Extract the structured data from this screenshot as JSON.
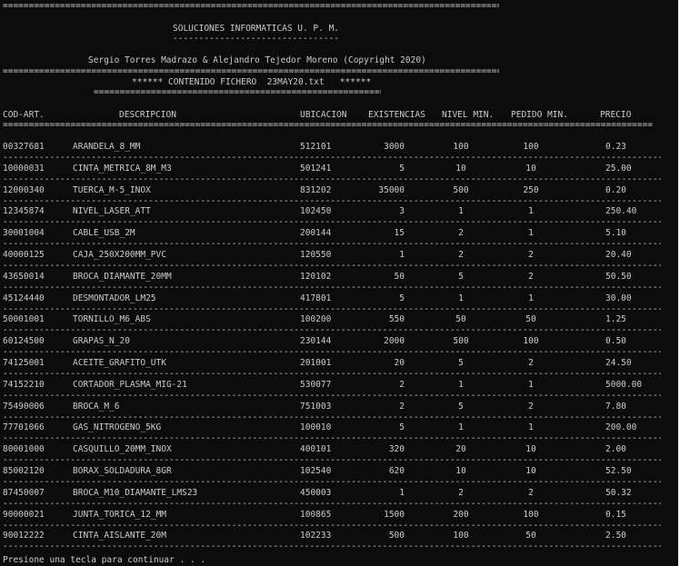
{
  "header": {
    "top_rule": "====================================================================================================================",
    "company": "SOLUCIONES INFORMATICAS U. P. M.",
    "company_underline": "--------------------------------",
    "authors": "Sergio Torres Madrazo & Alejandro Tejedor Moreno (Copyright 2020)",
    "authors_rule": "=====================================================================================================================",
    "file_title": "****** CONTENIDO FICHERO  23MAY20.txt   ******",
    "file_title_rule": "==============================================================================",
    "columns_rule": "===================================================================================================================================================="
  },
  "table": {
    "columns": [
      "COD-ART.",
      "DESCRIPCION",
      "UBICACION",
      "EXISTENCIAS",
      "NIVEL MIN.",
      "PEDIDO MIN.",
      "PRECIO"
    ],
    "row_separator": "--------------------------------------------------------------------------------------------------------------------------------------------------------------------",
    "rows": [
      [
        "00327681",
        "ARANDELA_8_MM",
        "512101",
        "3000",
        "100",
        "100",
        "0.23"
      ],
      [
        "10000031",
        "CINTA_METRICA_8M_M3",
        "501241",
        "5",
        "10",
        "10",
        "25.00"
      ],
      [
        "12000340",
        "TUERCA_M-5_INOX",
        "831202",
        "35000",
        "500",
        "250",
        "0.20"
      ],
      [
        "12345874",
        "NIVEL_LASER_ATT",
        "102450",
        "3",
        "1",
        "1",
        "250.40"
      ],
      [
        "30001004",
        "CABLE_USB_2M",
        "200144",
        "15",
        "2",
        "1",
        "5.10"
      ],
      [
        "40000125",
        "CAJA_250X200MM_PVC",
        "120550",
        "1",
        "2",
        "2",
        "20.40"
      ],
      [
        "43650014",
        "BROCA_DIAMANTE_20MM",
        "120102",
        "50",
        "5",
        "2",
        "50.50"
      ],
      [
        "45124440",
        "DESMONTADOR_LM25",
        "417801",
        "5",
        "1",
        "1",
        "30.00"
      ],
      [
        "50001001",
        "TORNILLO_M6_ABS",
        "100200",
        "550",
        "50",
        "50",
        "1.25"
      ],
      [
        "60124500",
        "GRAPAS_N_20",
        "230144",
        "2000",
        "500",
        "100",
        "0.50"
      ],
      [
        "74125001",
        "ACEITE_GRAFITO_UTK",
        "201001",
        "20",
        "5",
        "2",
        "24.50"
      ],
      [
        "74152210",
        "CORTADOR_PLASMA_MIG-21",
        "530077",
        "2",
        "1",
        "1",
        "5000.00"
      ],
      [
        "75490006",
        "BROCA_M_6",
        "751003",
        "2",
        "5",
        "2",
        "7.80"
      ],
      [
        "77701066",
        "GAS_NITROGENO_5KG",
        "100010",
        "5",
        "1",
        "1",
        "200.00"
      ],
      [
        "80001000",
        "CASQUILLO_20MM_INOX",
        "400101",
        "320",
        "20",
        "10",
        "2.00"
      ],
      [
        "85002120",
        "BORAX_SOLDADURA_8GR",
        "102540",
        "620",
        "10",
        "10",
        "52.50"
      ],
      [
        "87450007",
        "BROCA_M10_DIAMANTE_LMS23",
        "450003",
        "1",
        "2",
        "2",
        "50.32"
      ],
      [
        "90000021",
        "JUNTA_TORICA_12_MM",
        "100865",
        "1500",
        "200",
        "100",
        "0.15"
      ],
      [
        "90012222",
        "CINTA_AISLANTE_20M",
        "102233",
        "500",
        "100",
        "50",
        "2.50"
      ]
    ]
  },
  "prompt": "Presione una tecla para continuar . . ."
}
